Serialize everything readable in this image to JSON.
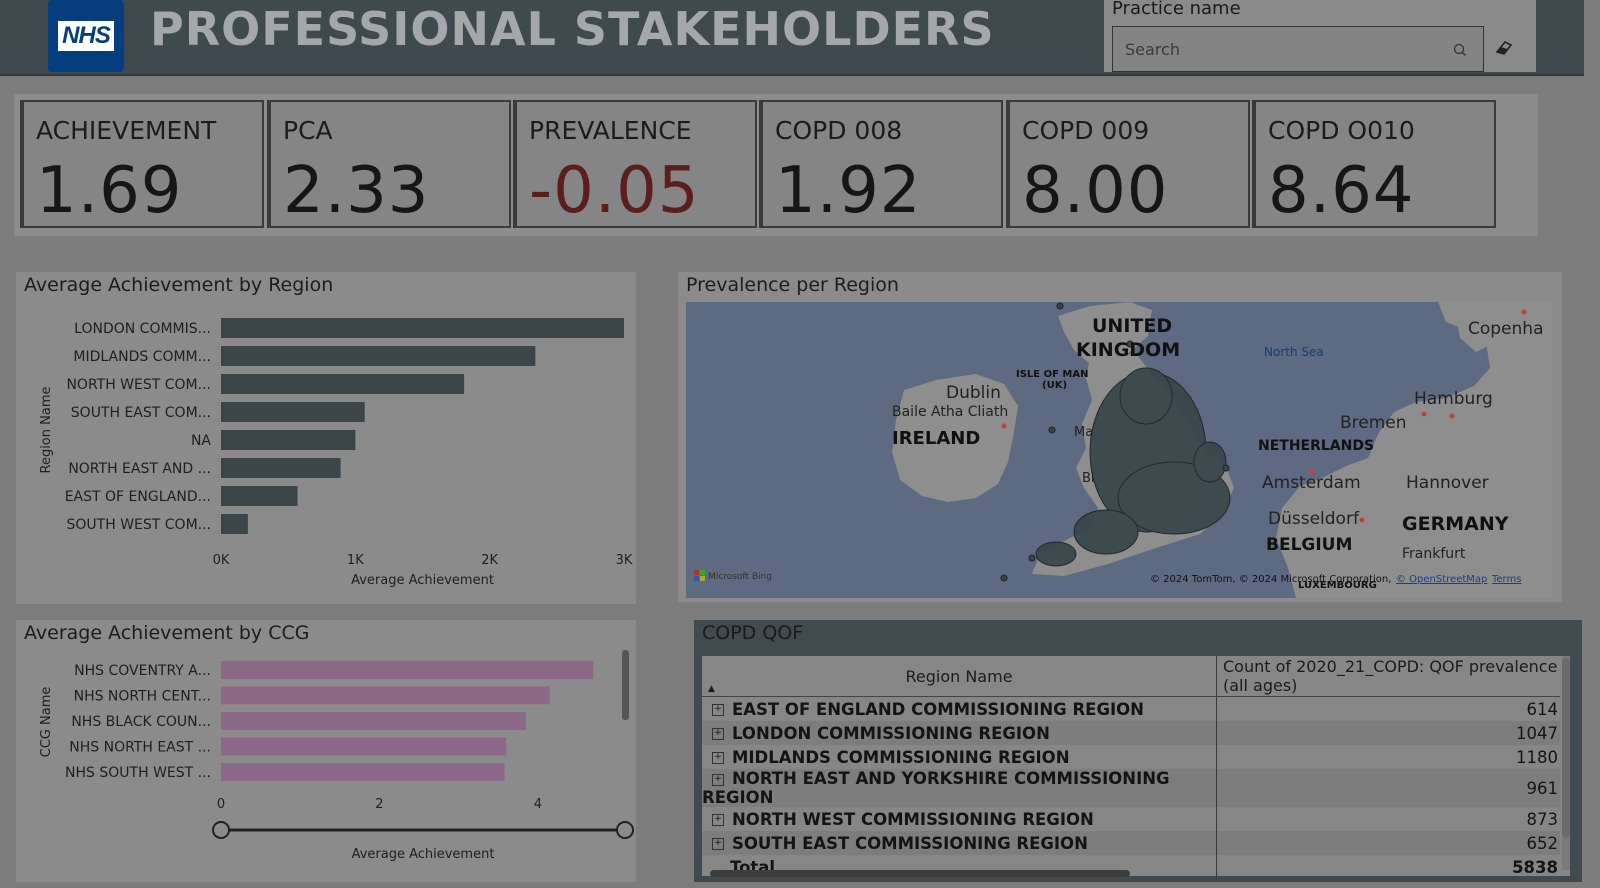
{
  "header": {
    "logo_text": "NHS",
    "title": "PROFESSIONAL STAKEHOLDERS",
    "slicer_label": "Practice name",
    "search_placeholder": "Search"
  },
  "kpis": [
    {
      "label": "ACHIEVEMENT",
      "value": "1.69"
    },
    {
      "label": "PCA",
      "value": "2.33"
    },
    {
      "label": "PREVALENCE",
      "value": "-0.05"
    },
    {
      "label": "COPD 008",
      "value": "1.92"
    },
    {
      "label": "COPD 009",
      "value": "8.00"
    },
    {
      "label": "COPD O010",
      "value": "8.64"
    }
  ],
  "colors": {
    "bar_region": "#3c4649",
    "bar_ccg": "#8c6a87",
    "header_bg": "#3f4a4e",
    "negative_value": "#5a1e1e"
  },
  "chart_data": [
    {
      "type": "bar",
      "orientation": "horizontal",
      "title": "Average Achievement by Region",
      "xlabel": "Average Achievement",
      "ylabel": "Region Name",
      "categories": [
        "LONDON COMMIS...",
        "MIDLANDS COMM...",
        "NORTH WEST COM...",
        "SOUTH EAST COM...",
        "NA",
        "NORTH EAST AND ...",
        "EAST OF ENGLAND...",
        "SOUTH WEST COM..."
      ],
      "values": [
        3000,
        2340,
        1810,
        1070,
        1000,
        890,
        570,
        200
      ],
      "xlim": [
        0,
        3000
      ],
      "xticks": [
        "0K",
        "1K",
        "2K",
        "3K"
      ],
      "grid": false
    },
    {
      "type": "bar",
      "orientation": "horizontal",
      "title": "Average Achievement by CCG",
      "xlabel": "Average Achievement",
      "ylabel": "CCG Name",
      "categories": [
        "NHS COVENTRY A...",
        "NHS NORTH CENT...",
        "NHS BLACK COUN...",
        "NHS NORTH EAST ...",
        "NHS SOUTH WEST ..."
      ],
      "values": [
        4.7,
        4.15,
        3.85,
        3.6,
        3.58
      ],
      "xlim": [
        0,
        5.1
      ],
      "xticks": [
        "0",
        "2",
        "4"
      ],
      "grid": false
    }
  ],
  "map": {
    "title": "Prevalence per Region",
    "labels": {
      "united": "UNITED",
      "kingdom": "KINGDOM",
      "isle_of_man": "ISLE OF MAN",
      "uk": "(UK)",
      "dublin": "Dublin",
      "baile": "Baile Atha Cliath",
      "ireland": "IRELAND",
      "north_sea": "North Sea",
      "copenhagen": "Copenha",
      "hamburg": "Hamburg",
      "bremen": "Bremen",
      "netherlands": "NETHERLANDS",
      "amsterdam": "Amsterdam",
      "hannover": "Hannover",
      "dusseldorf": "Düsseldorf",
      "germany": "GERMANY",
      "belgium": "BELGIUM",
      "frankfurt": "Frankfurt",
      "luxembourg": "LUXEMBOURG",
      "ma": "Ma",
      "bi": "Bi"
    },
    "provider": "Microsoft Bing",
    "attribution": "© 2024 TomTom, © 2024 Microsoft Corporation,",
    "osm": "© OpenStreetMap",
    "terms": "Terms"
  },
  "table": {
    "title": "COPD QOF",
    "headers": [
      "Region Name",
      "Count of 2020_21_COPD: QOF prevalence (all ages)"
    ],
    "rows": [
      {
        "name": "EAST OF ENGLAND COMMISSIONING REGION",
        "count": "614"
      },
      {
        "name": "LONDON COMMISSIONING REGION",
        "count": "1047"
      },
      {
        "name": "MIDLANDS COMMISSIONING REGION",
        "count": "1180"
      },
      {
        "name": "NORTH EAST AND YORKSHIRE COMMISSIONING REGION",
        "count": "961"
      },
      {
        "name": "NORTH WEST COMMISSIONING REGION",
        "count": "873"
      },
      {
        "name": "SOUTH EAST COMMISSIONING REGION",
        "count": "652"
      }
    ],
    "total_label": "Total",
    "total_value": "5838"
  }
}
